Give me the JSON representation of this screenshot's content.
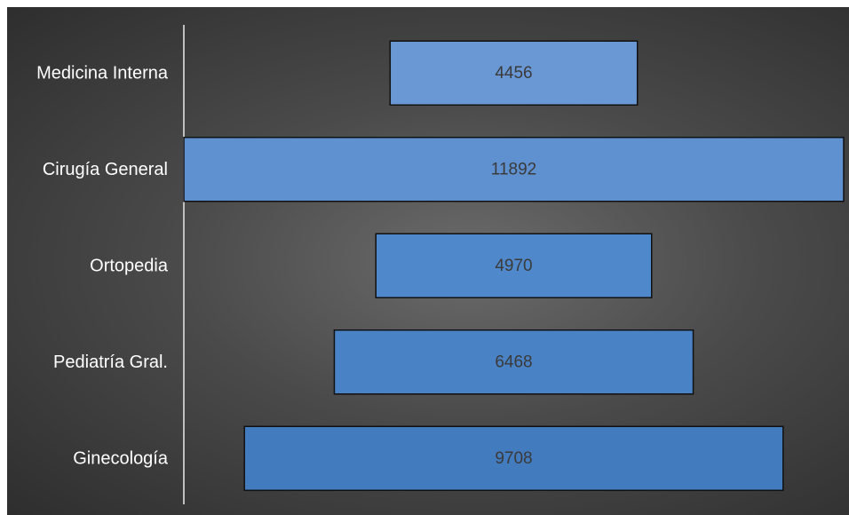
{
  "chart_data": {
    "type": "bar",
    "orientation": "horizontal",
    "layout": "funnel",
    "categories": [
      "Medicina Interna",
      "Cirugía General",
      "Ortopedia",
      "Pediatría Gral.",
      "Ginecología"
    ],
    "values": [
      4456,
      11892,
      4970,
      6468,
      9708
    ],
    "title": "",
    "xlabel": "",
    "ylabel": "",
    "grid": false,
    "legend": "none",
    "colors": {
      "background_center": "#6b6b6b",
      "background_edge": "#2e2e2e",
      "bars": [
        "#6a98d4",
        "#5f91d0",
        "#5089cb",
        "#4a82c6",
        "#437bbf"
      ],
      "bar_border": "#111111",
      "axis_line": "#bfbfbf",
      "category_text": "#ffffff",
      "value_text": "#3a3a3a"
    }
  }
}
